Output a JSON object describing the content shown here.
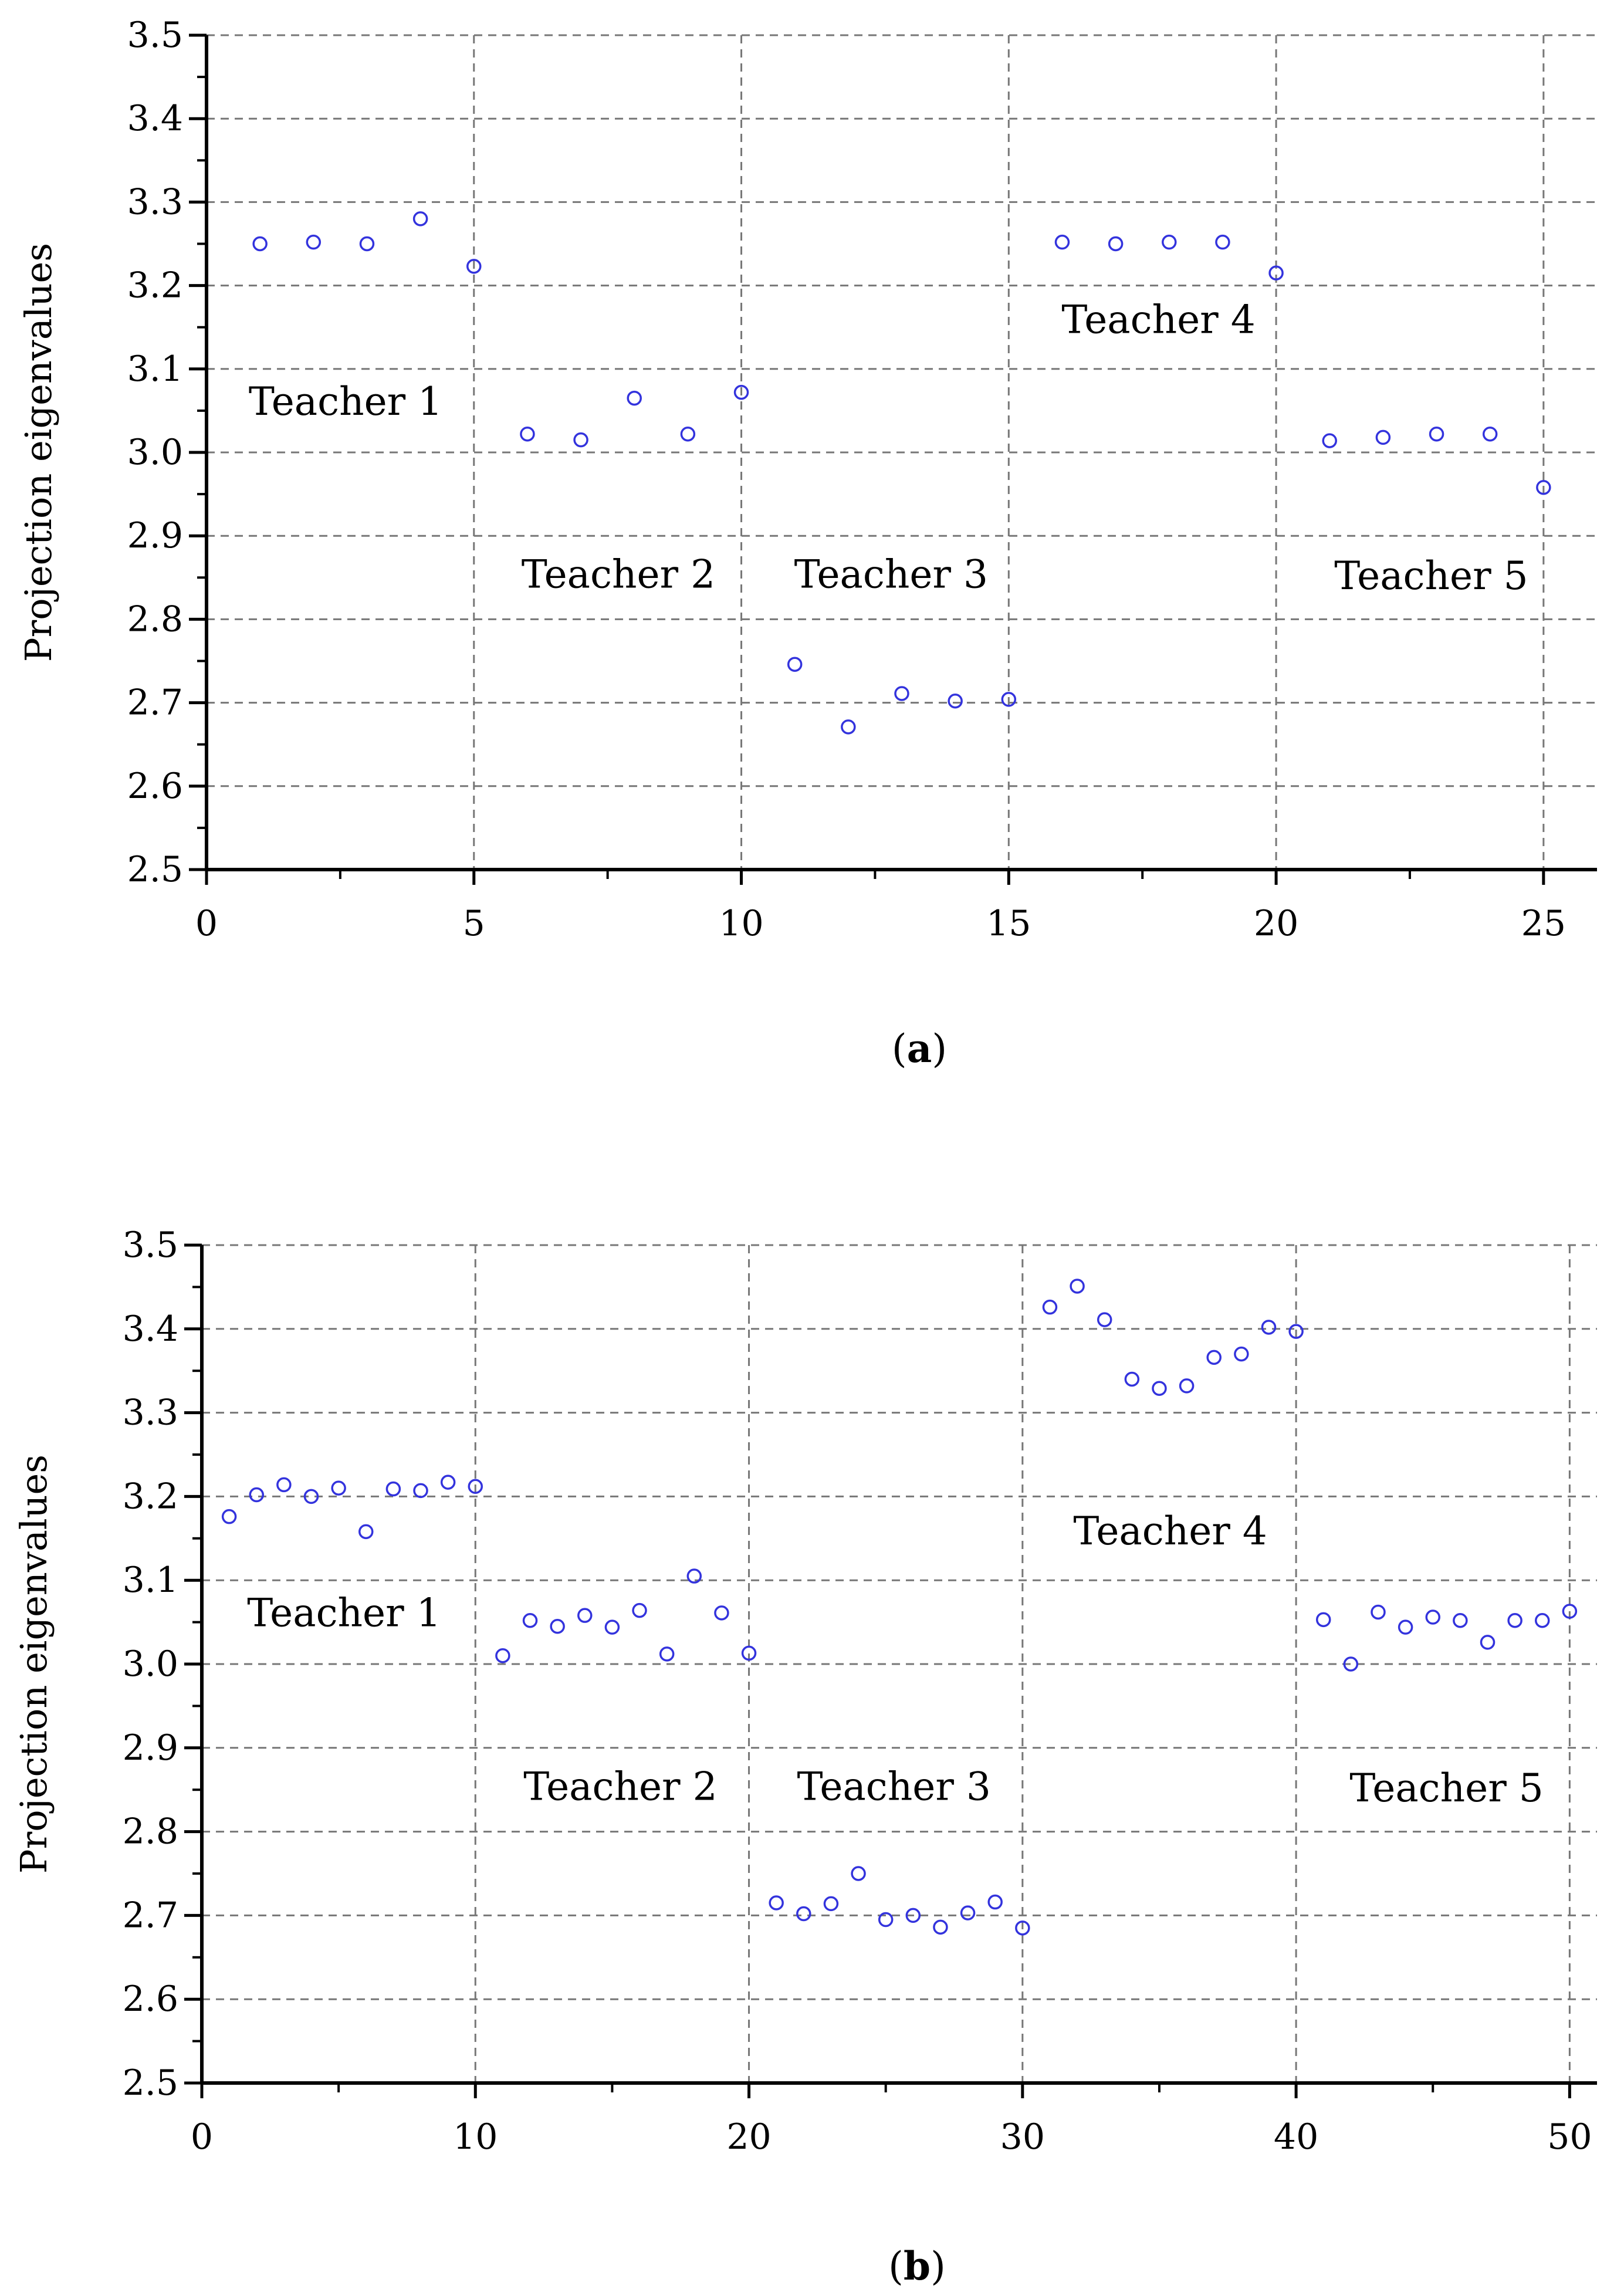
{
  "chart_data": [
    {
      "type": "scatter",
      "panel_label": "a",
      "caption_open": "(",
      "caption_close": ")",
      "ylabel": "Projection eigenvalues",
      "xlabel": "",
      "title": "",
      "xlim": [
        0,
        26
      ],
      "ylim": [
        2.5,
        3.5
      ],
      "xticks": [
        0,
        5,
        10,
        15,
        20,
        25
      ],
      "yticks": [
        2.5,
        2.6,
        2.7,
        2.8,
        2.9,
        3.0,
        3.1,
        3.2,
        3.3,
        3.4,
        3.5
      ],
      "ytick_labels": [
        "2.5",
        "2.6",
        "2.7",
        "2.8",
        "2.9",
        "3.0",
        "3.1",
        "3.2",
        "3.3",
        "3.4",
        "3.5"
      ],
      "grid": true,
      "marker_color": "#3333dd",
      "series": [
        {
          "x": [
            1,
            2,
            3,
            4,
            5,
            6,
            7,
            8,
            9,
            10,
            11,
            12,
            13,
            14,
            15,
            16,
            17,
            18,
            19,
            20,
            21,
            22,
            23,
            24,
            25
          ],
          "y": [
            3.25,
            3.252,
            3.25,
            3.28,
            3.223,
            3.022,
            3.015,
            3.065,
            3.022,
            3.072,
            2.746,
            2.671,
            2.711,
            2.702,
            2.704,
            3.252,
            3.25,
            3.252,
            3.252,
            3.215,
            3.014,
            3.018,
            3.022,
            3.022,
            2.958
          ]
        }
      ],
      "annotations": [
        {
          "text": "Teacher 1",
          "x": 2.6,
          "y": 3.045
        },
        {
          "text": "Teacher 2",
          "x": 7.7,
          "y": 2.838
        },
        {
          "text": "Teacher 3",
          "x": 12.8,
          "y": 2.838
        },
        {
          "text": "Teacher 4",
          "x": 17.8,
          "y": 3.143
        },
        {
          "text": "Teacher 5",
          "x": 22.9,
          "y": 2.836
        }
      ]
    },
    {
      "type": "scatter",
      "panel_label": "b",
      "caption_open": "(",
      "caption_close": ")",
      "ylabel": "Projection eigenvalues",
      "xlabel": "",
      "title": "",
      "xlim": [
        0,
        51
      ],
      "ylim": [
        2.5,
        3.5
      ],
      "xticks": [
        0,
        10,
        20,
        30,
        40,
        50
      ],
      "yticks": [
        2.5,
        2.6,
        2.7,
        2.8,
        2.9,
        3.0,
        3.1,
        3.2,
        3.3,
        3.4,
        3.5
      ],
      "ytick_labels": [
        "2.5",
        "2.6",
        "2.7",
        "2.8",
        "2.9",
        "3.0",
        "3.1",
        "3.2",
        "3.3",
        "3.4",
        "3.5"
      ],
      "grid": true,
      "marker_color": "#3333dd",
      "series": [
        {
          "x": [
            1,
            2,
            3,
            4,
            5,
            6,
            7,
            8,
            9,
            10,
            11,
            12,
            13,
            14,
            15,
            16,
            17,
            18,
            19,
            20,
            21,
            22,
            23,
            24,
            25,
            26,
            27,
            28,
            29,
            30,
            31,
            32,
            33,
            34,
            35,
            36,
            37,
            38,
            39,
            40,
            41,
            42,
            43,
            44,
            45,
            46,
            47,
            48,
            49,
            50
          ],
          "y": [
            3.176,
            3.202,
            3.214,
            3.2,
            3.21,
            3.158,
            3.209,
            3.207,
            3.217,
            3.212,
            3.01,
            3.052,
            3.045,
            3.058,
            3.044,
            3.064,
            3.012,
            3.105,
            3.061,
            3.013,
            2.715,
            2.702,
            2.714,
            2.75,
            2.695,
            2.7,
            2.686,
            2.703,
            2.716,
            2.685,
            3.426,
            3.451,
            3.411,
            3.34,
            3.329,
            3.332,
            3.366,
            3.37,
            3.402,
            3.397,
            3.053,
            3.0,
            3.062,
            3.044,
            3.056,
            3.052,
            3.026,
            3.052,
            3.052,
            3.063
          ]
        }
      ],
      "annotations": [
        {
          "text": "Teacher 1",
          "x": 5.2,
          "y": 3.045
        },
        {
          "text": "Teacher 2",
          "x": 15.3,
          "y": 2.838
        },
        {
          "text": "Teacher 3",
          "x": 25.3,
          "y": 2.838
        },
        {
          "text": "Teacher 4",
          "x": 35.4,
          "y": 3.143
        },
        {
          "text": "Teacher 5",
          "x": 45.5,
          "y": 2.836
        }
      ]
    }
  ]
}
